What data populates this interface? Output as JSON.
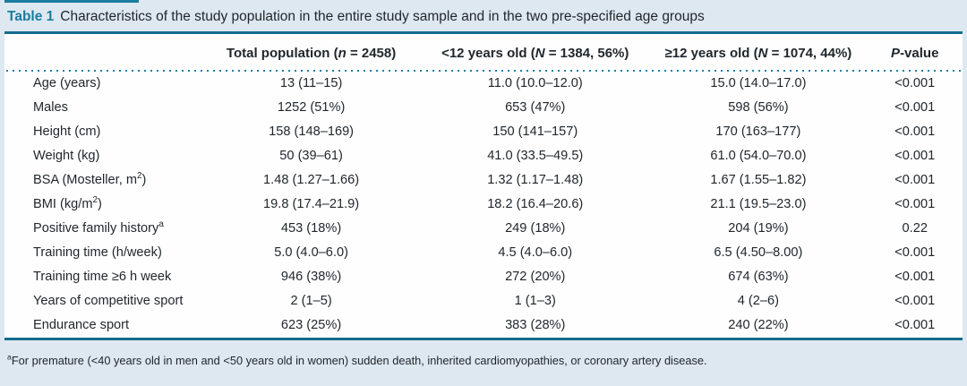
{
  "colors": {
    "accent": "#1a7c9e",
    "rule": "#156b8d",
    "dot": "#1e7fa3",
    "panel_bg": "#dee8f1",
    "text": "#1f262b"
  },
  "title": {
    "label": "Table 1",
    "text": "Characteristics of the study population in the entire study sample and in the two pre-specified age groups"
  },
  "table": {
    "columns": [
      {
        "pre": "",
        "italic": "",
        "post": ""
      },
      {
        "pre": "Total population (",
        "italic": "n",
        "post": " = 2458)"
      },
      {
        "pre": "<12 years old (",
        "italic": "N",
        "post": " = 1384, 56%)"
      },
      {
        "pre": "≥12 years old (",
        "italic": "N",
        "post": " = 1074, 44%)"
      },
      {
        "pre": "",
        "italic": "P",
        "post": "-value"
      }
    ],
    "rows": [
      {
        "label": "Age (years)",
        "sup": "",
        "label_post": "",
        "total": "13 (11–15)",
        "under12": "11.0 (10.0–12.0)",
        "over12": "15.0 (14.0–17.0)",
        "p": "<0.001"
      },
      {
        "label": "Males",
        "sup": "",
        "label_post": "",
        "total": "1252 (51%)",
        "under12": "653 (47%)",
        "over12": "598 (56%)",
        "p": "<0.001"
      },
      {
        "label": "Height (cm)",
        "sup": "",
        "label_post": "",
        "total": "158 (148–169)",
        "under12": "150 (141–157)",
        "over12": "170 (163–177)",
        "p": "<0.001"
      },
      {
        "label": "Weight (kg)",
        "sup": "",
        "label_post": "",
        "total": "50 (39–61)",
        "under12": "41.0 (33.5–49.5)",
        "over12": "61.0 (54.0–70.0)",
        "p": "<0.001"
      },
      {
        "label": "BSA (Mosteller, m",
        "sup": "2",
        "label_post": ")",
        "total": "1.48 (1.27–1.66)",
        "under12": "1.32 (1.17–1.48)",
        "over12": "1.67 (1.55–1.82)",
        "p": "<0.001"
      },
      {
        "label": "BMI (kg/m",
        "sup": "2",
        "label_post": ")",
        "total": "19.8 (17.4–21.9)",
        "under12": "18.2 (16.4–20.6)",
        "over12": "21.1 (19.5–23.0)",
        "p": "<0.001"
      },
      {
        "label": "Positive family history",
        "sup": "a",
        "label_post": "",
        "total": "453 (18%)",
        "under12": "249 (18%)",
        "over12": "204 (19%)",
        "p": "0.22"
      },
      {
        "label": "Training time (h/week)",
        "sup": "",
        "label_post": "",
        "total": "5.0 (4.0–6.0)",
        "under12": "4.5 (4.0–6.0)",
        "over12": "6.5 (4.50–8.00)",
        "p": "<0.001"
      },
      {
        "label": "Training time ≥6 h week",
        "sup": "",
        "label_post": "",
        "total": "946 (38%)",
        "under12": "272 (20%)",
        "over12": "674 (63%)",
        "p": "<0.001"
      },
      {
        "label": "Years of competitive sport",
        "sup": "",
        "label_post": "",
        "total": "2 (1–5)",
        "under12": "1 (1–3)",
        "over12": "4 (2–6)",
        "p": "<0.001"
      },
      {
        "label": "Endurance sport",
        "sup": "",
        "label_post": "",
        "total": "623 (25%)",
        "under12": "383 (28%)",
        "over12": "240 (22%)",
        "p": "<0.001"
      }
    ]
  },
  "footnote": {
    "sup": "a",
    "text": "For premature (<40 years old in men and <50 years old in women) sudden death, inherited cardiomyopathies, or coronary artery disease."
  }
}
